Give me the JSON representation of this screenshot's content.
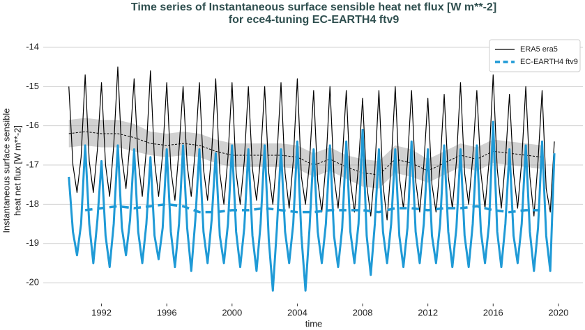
{
  "chart_data": {
    "type": "line",
    "title": "Time series of Instantaneous surface sensible heat net flux [W m**-2]",
    "subtitle": "for ece4-tuning EC-EARTH4 ftv9",
    "x_label": "time",
    "y_label": [
      "Instantaneous surface sensible",
      "heat net flux [W m**-2]"
    ],
    "xlim": [
      1988.43,
      2021.5
    ],
    "ylim": [
      -20.53,
      -13.77
    ],
    "xticks": [
      1992,
      1996,
      2000,
      2004,
      2008,
      2012,
      2016,
      2020
    ],
    "yticks": [
      -20,
      -19,
      -18,
      -17,
      -16,
      -15,
      -14
    ],
    "grid": true,
    "legend": "upper right",
    "series": [
      {
        "color": "#000000",
        "dash": true,
        "width": 1,
        "band_color": "#999999",
        "x": [
          1990,
          1991,
          1992,
          1993,
          1994,
          1995,
          1996,
          1997,
          1998,
          1999,
          2000,
          2001,
          2002,
          2003,
          2004,
          2005,
          2006,
          2007,
          2008,
          2009,
          2010,
          2011,
          2012,
          2013,
          2014,
          2015,
          2016,
          2017,
          2018,
          2019
        ],
        "values": [
          -16.2,
          -16.15,
          -16.2,
          -16.2,
          -16.3,
          -16.45,
          -16.5,
          -16.45,
          -16.5,
          -16.65,
          -16.75,
          -16.75,
          -16.75,
          -16.75,
          -16.8,
          -17.0,
          -16.85,
          -17.05,
          -17.2,
          -17.25,
          -16.85,
          -16.95,
          -17.15,
          -16.95,
          -16.75,
          -16.85,
          -16.65,
          -16.7,
          -16.75,
          -16.8
        ],
        "band": [
          0.35,
          0.35,
          0.35,
          0.35,
          0.35,
          0.3,
          0.3,
          0.3,
          0.3,
          0.3,
          0.3,
          0.3,
          0.3,
          0.3,
          0.3,
          0.3,
          0.3,
          0.3,
          0.35,
          0.35,
          0.35,
          0.35,
          0.3,
          0.3,
          0.3,
          0.3,
          0.3,
          0.3,
          0.3,
          0.3
        ]
      },
      {
        "name": "ERA5 era5",
        "color": "#000000",
        "dash": false,
        "width": 1.2,
        "x": [
          1990,
          1990.25,
          1990.5,
          1990.75,
          1991,
          1991.25,
          1991.5,
          1991.75,
          1992,
          1992.25,
          1992.5,
          1992.75,
          1993,
          1993.25,
          1993.5,
          1993.75,
          1994,
          1994.25,
          1994.5,
          1994.75,
          1995,
          1995.25,
          1995.5,
          1995.75,
          1996,
          1996.25,
          1996.5,
          1996.75,
          1997,
          1997.25,
          1997.5,
          1997.75,
          1998,
          1998.25,
          1998.5,
          1998.75,
          1999,
          1999.25,
          1999.5,
          1999.75,
          2000,
          2000.25,
          2000.5,
          2000.75,
          2001,
          2001.25,
          2001.5,
          2001.75,
          2002,
          2002.25,
          2002.5,
          2002.75,
          2003,
          2003.25,
          2003.5,
          2003.75,
          2004,
          2004.25,
          2004.5,
          2004.75,
          2005,
          2005.25,
          2005.5,
          2005.75,
          2006,
          2006.25,
          2006.5,
          2006.75,
          2007,
          2007.25,
          2007.5,
          2007.75,
          2008,
          2008.25,
          2008.5,
          2008.75,
          2009,
          2009.25,
          2009.5,
          2009.75,
          2010,
          2010.25,
          2010.5,
          2010.75,
          2011,
          2011.25,
          2011.5,
          2011.75,
          2012,
          2012.25,
          2012.5,
          2012.75,
          2013,
          2013.25,
          2013.5,
          2013.75,
          2014,
          2014.25,
          2014.5,
          2014.75,
          2015,
          2015.25,
          2015.5,
          2015.75,
          2016,
          2016.25,
          2016.5,
          2016.75,
          2017,
          2017.25,
          2017.5,
          2017.75,
          2018,
          2018.25,
          2018.5,
          2018.75,
          2019,
          2019.25,
          2019.5,
          2019.75
        ],
        "values": [
          -15.0,
          -17.0,
          -17.7,
          -16.8,
          -14.7,
          -16.9,
          -17.7,
          -16.6,
          -14.9,
          -17.0,
          -17.8,
          -16.5,
          -14.5,
          -16.8,
          -17.6,
          -16.4,
          -14.8,
          -16.9,
          -17.8,
          -16.6,
          -14.6,
          -16.9,
          -17.8,
          -16.7,
          -14.9,
          -17.1,
          -17.9,
          -16.6,
          -15.0,
          -17.0,
          -17.8,
          -16.6,
          -14.9,
          -17.1,
          -17.9,
          -16.7,
          -14.8,
          -17.2,
          -18.0,
          -16.8,
          -14.9,
          -17.2,
          -18.0,
          -16.9,
          -15.0,
          -17.1,
          -17.9,
          -16.8,
          -15.0,
          -17.2,
          -18.0,
          -16.8,
          -14.9,
          -17.2,
          -18.1,
          -16.9,
          -14.8,
          -17.3,
          -18.0,
          -16.9,
          -15.1,
          -17.4,
          -18.2,
          -17.0,
          -15.0,
          -17.3,
          -18.1,
          -16.9,
          -15.1,
          -17.4,
          -18.2,
          -17.0,
          -15.3,
          -17.5,
          -18.3,
          -17.1,
          -15.1,
          -17.5,
          -18.4,
          -17.0,
          -15.0,
          -17.3,
          -18.1,
          -16.9,
          -15.1,
          -17.4,
          -18.2,
          -17.0,
          -15.3,
          -17.5,
          -18.2,
          -17.0,
          -15.2,
          -17.3,
          -18.1,
          -16.9,
          -14.9,
          -17.2,
          -18.0,
          -16.8,
          -15.1,
          -17.2,
          -18.1,
          -16.9,
          -14.7,
          -17.1,
          -18.1,
          -16.9,
          -15.2,
          -17.2,
          -18.1,
          -16.9,
          -15.0,
          -17.3,
          -18.3,
          -16.9,
          -15.1,
          -17.6,
          -18.2,
          -16.4
        ]
      },
      {
        "color": "#1f9ad6",
        "dash": false,
        "width": 3,
        "x": [
          1990,
          1990.25,
          1990.5,
          1990.75,
          1991,
          1991.25,
          1991.5,
          1991.75,
          1992,
          1992.25,
          1992.5,
          1992.75,
          1993,
          1993.25,
          1993.5,
          1993.75,
          1994,
          1994.25,
          1994.5,
          1994.75,
          1995,
          1995.25,
          1995.5,
          1995.75,
          1996,
          1996.25,
          1996.5,
          1996.75,
          1997,
          1997.25,
          1997.5,
          1997.75,
          1998,
          1998.25,
          1998.5,
          1998.75,
          1999,
          1999.25,
          1999.5,
          1999.75,
          2000,
          2000.25,
          2000.5,
          2000.75,
          2001,
          2001.25,
          2001.5,
          2001.75,
          2002,
          2002.25,
          2002.5,
          2002.75,
          2003,
          2003.25,
          2003.5,
          2003.75,
          2004,
          2004.25,
          2004.5,
          2004.75,
          2005,
          2005.25,
          2005.5,
          2005.75,
          2006,
          2006.25,
          2006.5,
          2006.75,
          2007,
          2007.25,
          2007.5,
          2007.75,
          2008,
          2008.25,
          2008.5,
          2008.75,
          2009,
          2009.25,
          2009.5,
          2009.75,
          2010,
          2010.25,
          2010.5,
          2010.75,
          2011,
          2011.25,
          2011.5,
          2011.75,
          2012,
          2012.25,
          2012.5,
          2012.75,
          2013,
          2013.25,
          2013.5,
          2013.75,
          2014,
          2014.25,
          2014.5,
          2014.75,
          2015,
          2015.25,
          2015.5,
          2015.75,
          2016,
          2016.25,
          2016.5,
          2016.75,
          2017,
          2017.25,
          2017.5,
          2017.75,
          2018,
          2018.25,
          2018.5,
          2018.75,
          2019,
          2019.25,
          2019.5,
          2019.75
        ],
        "values": [
          -17.3,
          -18.7,
          -19.3,
          -18.5,
          -16.5,
          -18.5,
          -19.5,
          -18.4,
          -16.9,
          -18.8,
          -19.6,
          -18.5,
          -16.5,
          -18.6,
          -19.3,
          -18.4,
          -16.6,
          -18.7,
          -19.5,
          -18.5,
          -16.8,
          -18.8,
          -19.4,
          -18.6,
          -16.6,
          -18.7,
          -19.6,
          -18.5,
          -16.5,
          -18.6,
          -19.7,
          -18.4,
          -16.6,
          -18.7,
          -19.5,
          -18.4,
          -16.7,
          -18.8,
          -19.5,
          -18.5,
          -16.5,
          -18.7,
          -19.6,
          -18.6,
          -16.6,
          -18.8,
          -19.7,
          -18.5,
          -16.5,
          -18.9,
          -20.2,
          -18.6,
          -16.6,
          -18.7,
          -19.5,
          -18.5,
          -16.4,
          -18.8,
          -20.2,
          -18.6,
          -16.6,
          -18.7,
          -19.5,
          -18.5,
          -16.5,
          -18.8,
          -19.6,
          -18.6,
          -16.4,
          -18.7,
          -19.5,
          -18.5,
          -16.1,
          -18.8,
          -19.8,
          -18.5,
          -16.6,
          -18.7,
          -19.5,
          -18.5,
          -16.6,
          -18.8,
          -19.6,
          -18.6,
          -16.4,
          -18.7,
          -19.5,
          -18.5,
          -16.6,
          -18.8,
          -19.5,
          -18.5,
          -16.5,
          -18.7,
          -19.6,
          -18.6,
          -16.6,
          -18.8,
          -19.6,
          -18.5,
          -16.5,
          -18.7,
          -19.5,
          -18.5,
          -15.9,
          -18.7,
          -19.6,
          -18.5,
          -16.6,
          -18.8,
          -19.5,
          -18.5,
          -16.5,
          -18.7,
          -19.7,
          -18.6,
          -16.4,
          -18.8,
          -19.7,
          -16.7
        ]
      },
      {
        "name": "EC-EARTH4 ftv9",
        "color": "#1f9ad6",
        "dash": true,
        "width": 3.5,
        "x": [
          1991,
          1992,
          1993,
          1994,
          1995,
          1996,
          1997,
          1998,
          1999,
          2000,
          2001,
          2002,
          2003,
          2004,
          2005,
          2006,
          2007,
          2008,
          2009,
          2010,
          2011,
          2012,
          2013,
          2014,
          2015,
          2016,
          2017,
          2018,
          2019
        ],
        "values": [
          -18.15,
          -18.1,
          -18.05,
          -18.1,
          -18.05,
          -18.0,
          -18.05,
          -18.2,
          -18.2,
          -18.15,
          -18.15,
          -18.1,
          -18.15,
          -18.2,
          -18.2,
          -18.15,
          -18.15,
          -18.15,
          -18.2,
          -18.1,
          -18.1,
          -18.15,
          -18.1,
          -18.1,
          -18.05,
          -18.15,
          -18.2,
          -18.15,
          -18.15
        ]
      }
    ]
  }
}
